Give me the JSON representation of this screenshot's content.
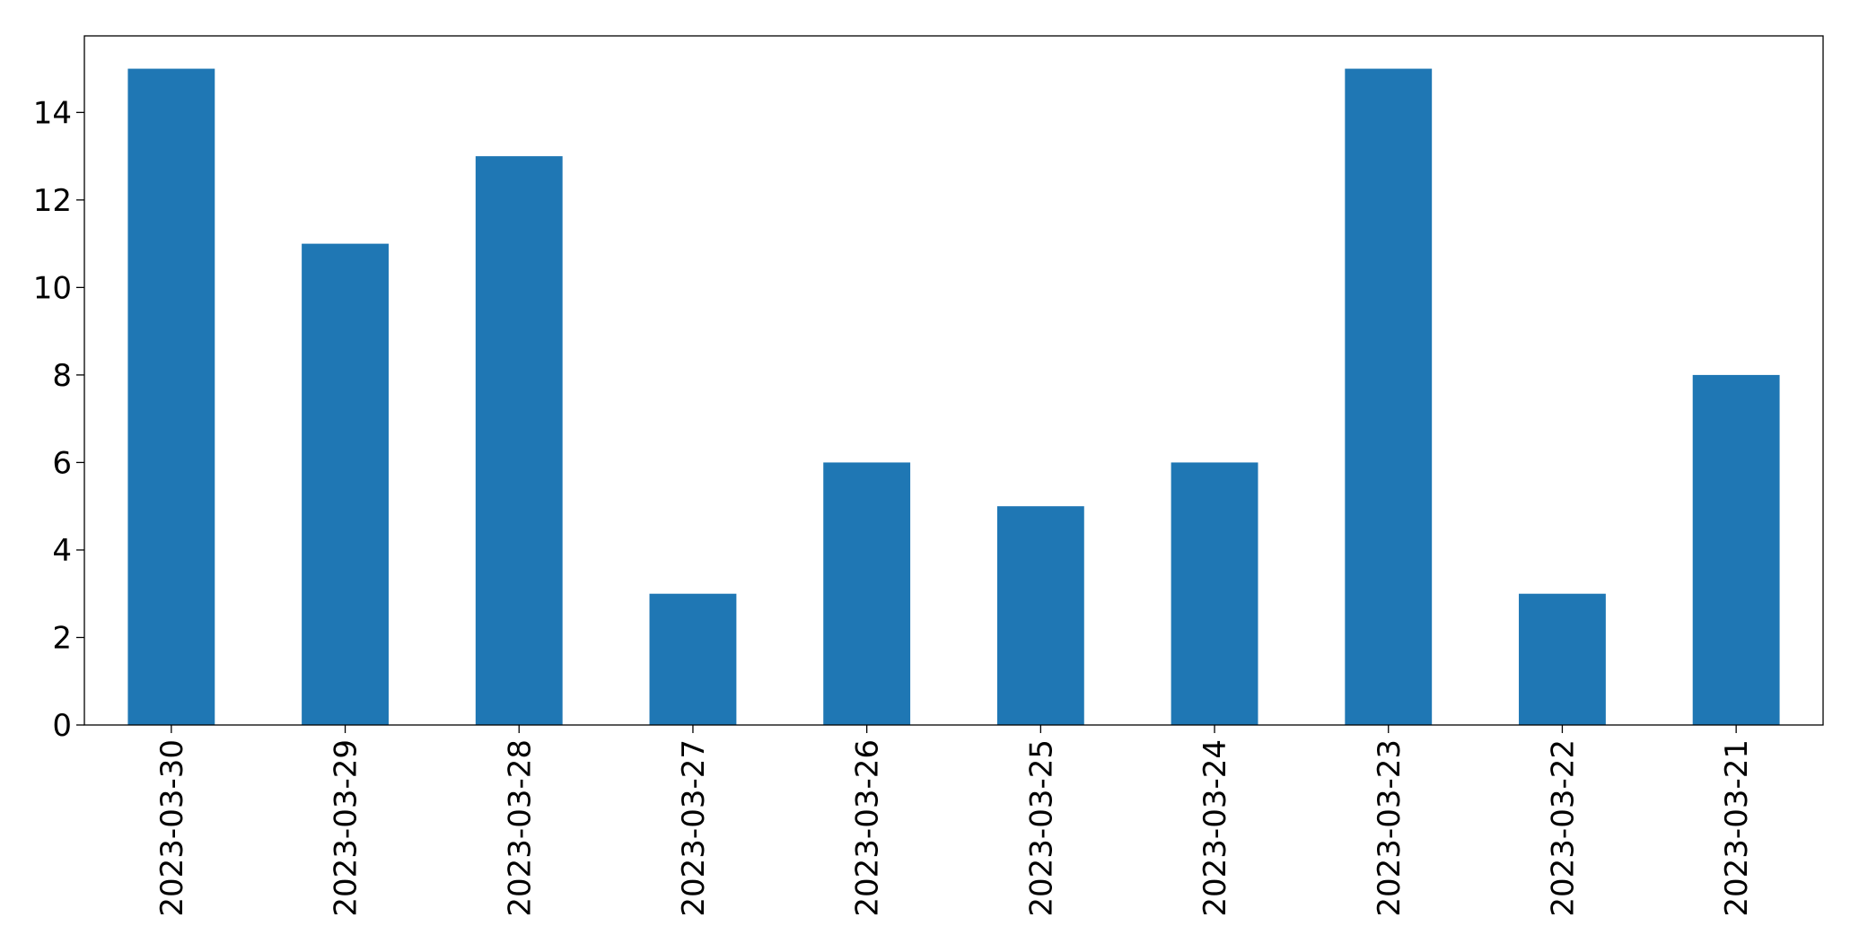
{
  "chart_data": {
    "type": "bar",
    "categories": [
      "2023-03-30",
      "2023-03-29",
      "2023-03-28",
      "2023-03-27",
      "2023-03-26",
      "2023-03-25",
      "2023-03-24",
      "2023-03-23",
      "2023-03-22",
      "2023-03-21"
    ],
    "values": [
      15,
      11,
      13,
      3,
      6,
      5,
      6,
      15,
      3,
      8
    ],
    "color": "#1f77b4",
    "ylim": [
      0,
      15.75
    ],
    "yticks": [
      0,
      2,
      4,
      6,
      8,
      10,
      12,
      14
    ],
    "grid": false
  }
}
